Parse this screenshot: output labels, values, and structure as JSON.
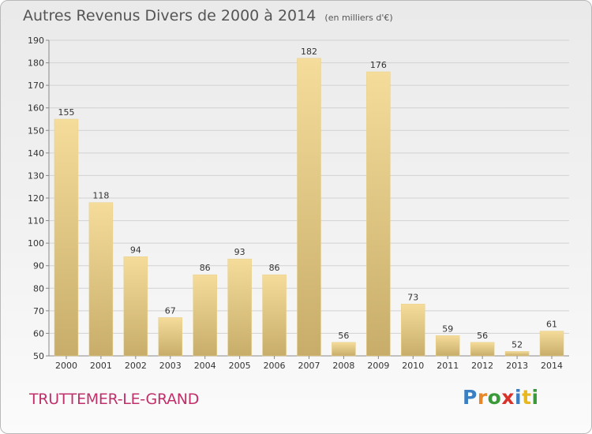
{
  "header": {
    "title": "Autres Revenus Divers de 2000 à 2014",
    "subtitle": "(en milliers d'€)"
  },
  "footer": {
    "commune": "TRUTTEMER-LE-GRAND",
    "logo_letters": [
      "P",
      "r",
      "o",
      "x",
      "i",
      "t",
      "i"
    ],
    "logo_colors": [
      "#3a7fc4",
      "#e8862a",
      "#3a9a3a",
      "#d8322a",
      "#3a7fc4",
      "#e8b820",
      "#3a9a3a"
    ]
  },
  "colors": {
    "bar_light": "#f5dc9a",
    "bar_dark": "#c8ad6a",
    "commune_text": "#c0306a",
    "axis_text": "#333333"
  },
  "chart_data": {
    "type": "bar",
    "categories": [
      "2000",
      "2001",
      "2002",
      "2003",
      "2004",
      "2005",
      "2006",
      "2007",
      "2008",
      "2009",
      "2010",
      "2011",
      "2012",
      "2013",
      "2014"
    ],
    "values": [
      155,
      118,
      94,
      67,
      86,
      93,
      86,
      182,
      56,
      176,
      73,
      59,
      56,
      52,
      61
    ],
    "title": "Autres Revenus Divers de 2000 à 2014",
    "subtitle": "(en milliers d'€)",
    "xlabel": "",
    "ylabel": "",
    "ylim": [
      50,
      190
    ],
    "ytick_step": 10,
    "grid": true,
    "legend": "none"
  }
}
